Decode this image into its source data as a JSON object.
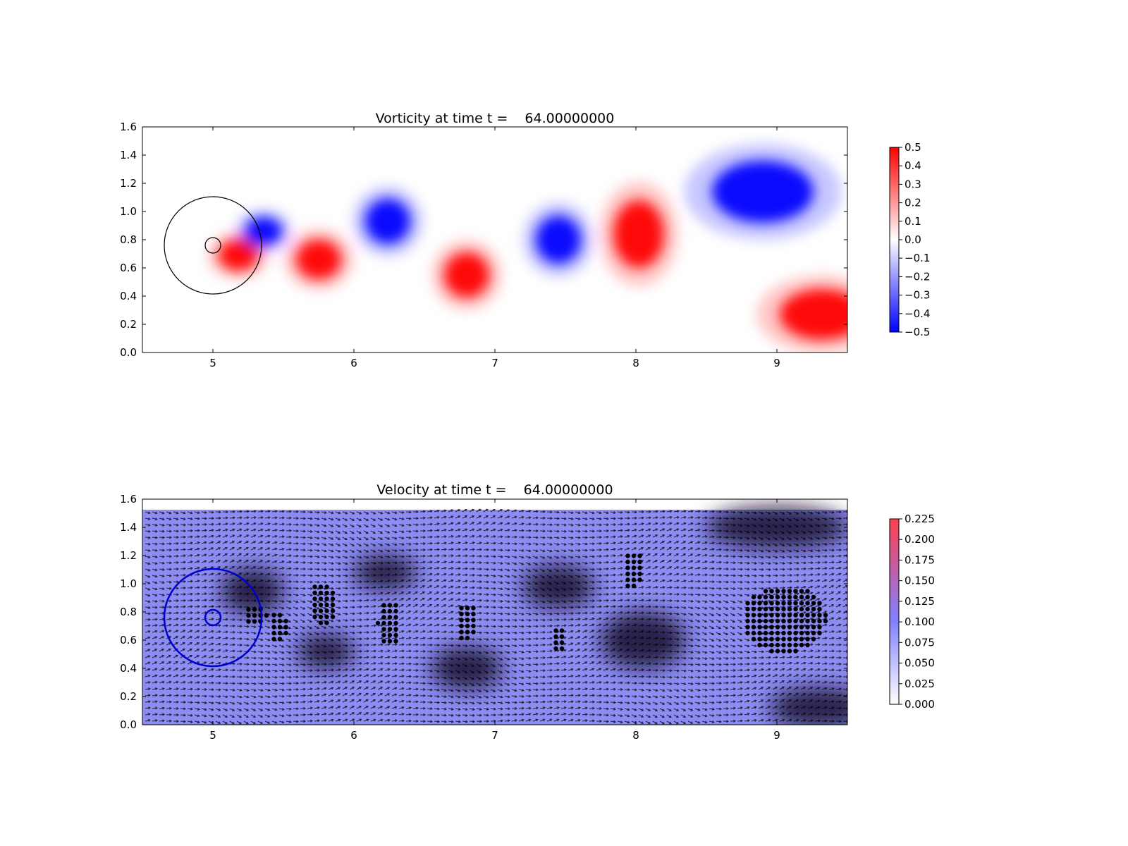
{
  "chart_data": [
    {
      "type": "heatmap",
      "title": "Vorticity at time t =    64.00000000",
      "xlabel": "",
      "ylabel": "",
      "xlim": [
        4.5,
        9.5
      ],
      "ylim": [
        0.0,
        1.6
      ],
      "xticks": [
        5,
        6,
        7,
        8,
        9
      ],
      "xtick_labels": [
        "5",
        "6",
        "7",
        "8",
        "9"
      ],
      "yticks": [
        0.0,
        0.2,
        0.4,
        0.6,
        0.8,
        1.0,
        1.2,
        1.4,
        1.6
      ],
      "ytick_labels": [
        "0.0",
        "0.2",
        "0.4",
        "0.6",
        "0.8",
        "1.0",
        "1.2",
        "1.4",
        "1.6"
      ],
      "colormap": "bwr",
      "colorbar": {
        "range": [
          -0.5,
          0.5
        ],
        "ticks": [
          0.5,
          0.4,
          0.3,
          0.2,
          0.1,
          0.0,
          -0.1,
          -0.2,
          -0.3,
          -0.4,
          -0.5
        ],
        "tick_labels": [
          "0.5",
          "0.4",
          "0.3",
          "0.2",
          "0.1",
          "0.0",
          "−0.1",
          "−0.2",
          "−0.3",
          "−0.4",
          "−0.5"
        ]
      },
      "circles": [
        {
          "cx": 5.0,
          "cy": 0.76,
          "r": 0.345,
          "color": "#000000"
        },
        {
          "cx": 5.0,
          "cy": 0.76,
          "r": 0.055,
          "color": "#000000"
        }
      ],
      "vortices": [
        {
          "x": 5.18,
          "y": 0.69,
          "rx": 0.14,
          "ry": 0.11,
          "sign": 1
        },
        {
          "x": 5.36,
          "y": 0.86,
          "rx": 0.13,
          "ry": 0.1,
          "sign": -1
        },
        {
          "x": 5.75,
          "y": 0.66,
          "rx": 0.16,
          "ry": 0.14,
          "sign": 1
        },
        {
          "x": 6.24,
          "y": 0.93,
          "rx": 0.16,
          "ry": 0.16,
          "sign": -1
        },
        {
          "x": 6.8,
          "y": 0.55,
          "rx": 0.16,
          "ry": 0.16,
          "sign": 1
        },
        {
          "x": 7.45,
          "y": 0.8,
          "rx": 0.16,
          "ry": 0.17,
          "sign": -1
        },
        {
          "x": 8.02,
          "y": 0.84,
          "rx": 0.18,
          "ry": 0.24,
          "sign": 1
        },
        {
          "x": 8.9,
          "y": 1.14,
          "rx": 0.36,
          "ry": 0.22,
          "sign": -1
        },
        {
          "x": 9.32,
          "y": 0.27,
          "rx": 0.3,
          "ry": 0.18,
          "sign": 1
        }
      ]
    },
    {
      "type": "quiver",
      "title": "Velocity at time t =    64.00000000",
      "xlabel": "",
      "ylabel": "",
      "xlim": [
        4.5,
        9.5
      ],
      "ylim": [
        0.0,
        1.6
      ],
      "xticks": [
        5,
        6,
        7,
        8,
        9
      ],
      "xtick_labels": [
        "5",
        "6",
        "7",
        "8",
        "9"
      ],
      "yticks": [
        0.0,
        0.2,
        0.4,
        0.6,
        0.8,
        1.0,
        1.2,
        1.4,
        1.6
      ],
      "ytick_labels": [
        "0.0",
        "0.2",
        "0.4",
        "0.6",
        "0.8",
        "1.0",
        "1.2",
        "1.4",
        "1.6"
      ],
      "colormap": "white-blue-red",
      "colorbar": {
        "range": [
          0.0,
          0.225
        ],
        "ticks": [
          0.225,
          0.2,
          0.175,
          0.15,
          0.125,
          0.1,
          0.075,
          0.05,
          0.025,
          0.0
        ],
        "tick_labels": [
          "0.225",
          "0.200",
          "0.175",
          "0.150",
          "0.125",
          "0.100",
          "0.075",
          "0.050",
          "0.025",
          "0.000"
        ]
      },
      "circles": [
        {
          "cx": 5.0,
          "cy": 0.76,
          "r": 0.345,
          "color": "#0000cc"
        },
        {
          "cx": 5.0,
          "cy": 0.76,
          "r": 0.055,
          "color": "#0000cc"
        }
      ],
      "dot_clusters": [
        {
          "x": 5.3,
          "y": 0.78,
          "rx": 0.09,
          "ry": 0.08
        },
        {
          "x": 5.46,
          "y": 0.7,
          "rx": 0.07,
          "ry": 0.12
        },
        {
          "x": 5.78,
          "y": 0.86,
          "rx": 0.1,
          "ry": 0.16
        },
        {
          "x": 6.25,
          "y": 0.72,
          "rx": 0.08,
          "ry": 0.17
        },
        {
          "x": 6.8,
          "y": 0.73,
          "rx": 0.08,
          "ry": 0.14
        },
        {
          "x": 7.45,
          "y": 0.62,
          "rx": 0.06,
          "ry": 0.09
        },
        {
          "x": 7.98,
          "y": 1.1,
          "rx": 0.08,
          "ry": 0.14
        },
        {
          "x": 9.05,
          "y": 0.75,
          "rx": 0.3,
          "ry": 0.24
        }
      ],
      "dark_regions": [
        {
          "x": 5.28,
          "y": 0.95,
          "rx": 0.22,
          "ry": 0.16
        },
        {
          "x": 6.22,
          "y": 1.08,
          "rx": 0.22,
          "ry": 0.12
        },
        {
          "x": 5.8,
          "y": 0.52,
          "rx": 0.2,
          "ry": 0.12
        },
        {
          "x": 6.8,
          "y": 0.4,
          "rx": 0.25,
          "ry": 0.15
        },
        {
          "x": 7.45,
          "y": 0.98,
          "rx": 0.25,
          "ry": 0.15
        },
        {
          "x": 8.05,
          "y": 0.6,
          "rx": 0.3,
          "ry": 0.2
        },
        {
          "x": 9.0,
          "y": 1.4,
          "rx": 0.5,
          "ry": 0.15
        },
        {
          "x": 9.3,
          "y": 0.12,
          "rx": 0.35,
          "ry": 0.14
        }
      ]
    }
  ],
  "colors": {
    "vort_pos": "#ff0000",
    "vort_neg": "#0000ff",
    "vel_low": "#ffffff",
    "vel_mid": "#8080ff",
    "vel_high": "#ff4050"
  }
}
